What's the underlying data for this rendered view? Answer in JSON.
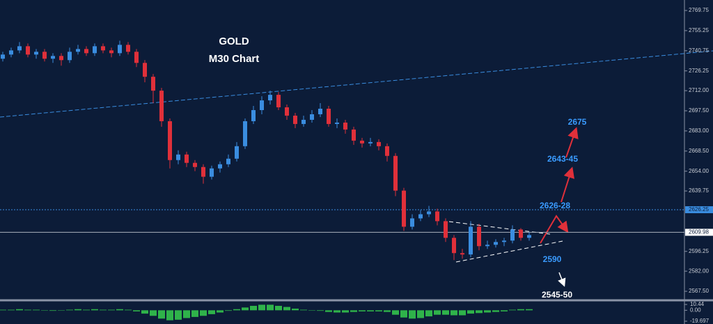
{
  "chart_data": [
    {
      "type": "candlestick",
      "title": "GOLD",
      "subtitle": "M30 Chart",
      "up_color": "#3a8de0",
      "down_color": "#e0303a",
      "open": [
        2735,
        2738,
        2741,
        2744,
        2738,
        2740,
        2735,
        2737,
        2734,
        2740,
        2742,
        2739,
        2744,
        2741,
        2739,
        2745,
        2740,
        2732,
        2722,
        2712,
        2690,
        2662,
        2666,
        2660,
        2657,
        2650,
        2656,
        2659,
        2663,
        2672,
        2690,
        2698,
        2705,
        2709,
        2700,
        2694,
        2688,
        2691,
        2695,
        2699,
        2688,
        2689,
        2684,
        2676,
        2674,
        2675,
        2672,
        2665,
        2640,
        2614,
        2620,
        2623,
        2625,
        2618,
        2606,
        2595,
        2594,
        2614,
        2600,
        2601,
        2603,
        2604,
        2612,
        2606
      ],
      "high": [
        2740,
        2743,
        2747,
        2746,
        2742,
        2742,
        2739,
        2739,
        2743,
        2745,
        2744,
        2746,
        2746,
        2743,
        2748,
        2747,
        2742,
        2734,
        2724,
        2714,
        2692,
        2669,
        2668,
        2662,
        2659,
        2658,
        2661,
        2666,
        2675,
        2692,
        2701,
        2708,
        2712,
        2711,
        2702,
        2696,
        2694,
        2698,
        2703,
        2701,
        2692,
        2691,
        2686,
        2678,
        2678,
        2677,
        2674,
        2667,
        2642,
        2623,
        2626,
        2629,
        2627,
        2620,
        2608,
        2598,
        2618,
        2616,
        2604,
        2605,
        2606,
        2615,
        2613,
        2610
      ],
      "low": [
        2733,
        2736,
        2739,
        2736,
        2735,
        2733,
        2732,
        2730,
        2732,
        2738,
        2737,
        2737,
        2739,
        2736,
        2737,
        2738,
        2729,
        2718,
        2703,
        2686,
        2656,
        2659,
        2657,
        2654,
        2645,
        2648,
        2653,
        2657,
        2661,
        2670,
        2688,
        2695,
        2702,
        2698,
        2691,
        2685,
        2686,
        2689,
        2693,
        2686,
        2685,
        2681,
        2673,
        2671,
        2672,
        2669,
        2661,
        2636,
        2611,
        2612,
        2618,
        2621,
        2615,
        2603,
        2590,
        2591,
        2592,
        2597,
        2598,
        2599,
        2600,
        2602,
        2604,
        2604
      ],
      "close": [
        2738,
        2741,
        2744,
        2738,
        2740,
        2735,
        2737,
        2734,
        2740,
        2742,
        2739,
        2744,
        2741,
        2739,
        2745,
        2740,
        2732,
        2722,
        2712,
        2690,
        2662,
        2666,
        2660,
        2657,
        2650,
        2656,
        2659,
        2663,
        2672,
        2690,
        2698,
        2705,
        2709,
        2700,
        2694,
        2688,
        2691,
        2695,
        2699,
        2688,
        2689,
        2684,
        2676,
        2674,
        2675,
        2672,
        2665,
        2640,
        2614,
        2620,
        2623,
        2625,
        2618,
        2606,
        2595,
        2594,
        2614,
        2600,
        2601,
        2603,
        2604,
        2612,
        2606,
        2608
      ],
      "ylim": [
        2561.5,
        2777.3
      ],
      "yticks": [
        2769.75,
        2755.25,
        2740.75,
        2726.25,
        {
          "value": 2712,
          "label": "2712.00"
        },
        {
          "value": 2697.5,
          "label": "2697.50"
        },
        {
          "value": 2683,
          "label": "2683.00"
        },
        {
          "value": 2668.5,
          "label": "2668.50"
        },
        {
          "value": 2654,
          "label": "2654.00"
        },
        2639.75,
        2596.25,
        {
          "value": 2582,
          "label": "2582.00"
        },
        {
          "value": 2567.5,
          "label": "2567.50"
        }
      ],
      "price_lines": [
        2626.25,
        2609.98
      ],
      "annotations": [
        "2675",
        "2643-45",
        "2626-28",
        "2590",
        "2545-50"
      ]
    },
    {
      "type": "bar",
      "color": "#2fb34a",
      "values": [
        1,
        1,
        2,
        1,
        1,
        0,
        -1,
        0,
        1,
        2,
        1,
        2,
        1,
        1,
        2,
        1,
        -2,
        -6,
        -10,
        -15,
        -18,
        -17,
        -14,
        -12,
        -10,
        -7,
        -4,
        -1,
        2,
        5,
        8,
        10,
        10,
        8,
        6,
        3,
        1,
        0,
        -1,
        -3,
        -4,
        -4,
        -3,
        -2,
        -2,
        -2,
        -3,
        -8,
        -13,
        -15,
        -14,
        -11,
        -8,
        -8,
        -9,
        -9,
        -6,
        -5,
        -4,
        -3,
        -2,
        1,
        2,
        2
      ],
      "ylim": [
        -24.72,
        16.72
      ],
      "yticks": [
        10.44,
        {
          "value": 0,
          "label": "0.00"
        },
        -19.697
      ]
    }
  ]
}
